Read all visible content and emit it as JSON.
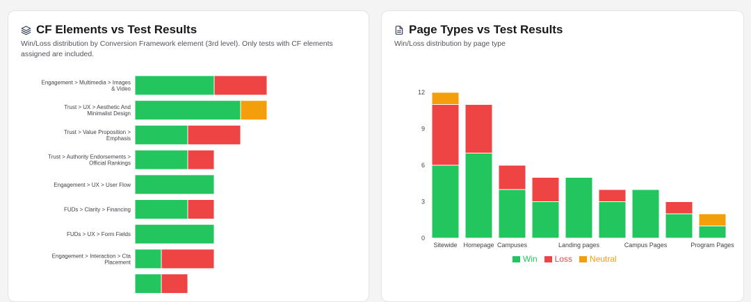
{
  "colors": {
    "win": "#22c55e",
    "loss": "#ef4444",
    "neutral": "#f59e0b"
  },
  "left_card": {
    "icon": "layers-icon",
    "title": "CF Elements vs Test Results",
    "subtitle": "Win/Loss distribution by Conversion Framework element (3rd level). Only tests with CF elements assigned are included."
  },
  "right_card": {
    "icon": "document-icon",
    "title": "Page Types vs Test Results",
    "subtitle": "Win/Loss distribution by page type"
  },
  "legend": {
    "win": "Win",
    "loss": "Loss",
    "neutral": "Neutral"
  },
  "chart_data": [
    {
      "type": "bar",
      "orientation": "horizontal",
      "stacked": true,
      "categories": [
        [
          "Engagement > Multimedia > Images",
          "& Video"
        ],
        [
          "Trust > UX > Aesthetic And",
          "Minimalist Design"
        ],
        [
          "Trust > Value Proposition >",
          "Emphasis"
        ],
        [
          "Trust > Authority Endorsements >",
          "Official Rankings"
        ],
        [
          "Engagement > UX > User Flow"
        ],
        [
          "FUDs > Clarity > Financing"
        ],
        [
          "FUDs > UX > Form Fields"
        ],
        [
          "Engagement > Interaction > Cta",
          "Placement"
        ],
        [
          ""
        ]
      ],
      "series": [
        {
          "name": "Win",
          "values": [
            3,
            4,
            2,
            2,
            3,
            2,
            3,
            1,
            1
          ]
        },
        {
          "name": "Loss",
          "values": [
            2,
            0,
            2,
            1,
            0,
            1,
            0,
            2,
            1
          ]
        },
        {
          "name": "Neutral",
          "values": [
            0,
            1,
            0,
            0,
            0,
            0,
            0,
            0,
            0
          ]
        }
      ]
    },
    {
      "type": "bar",
      "stacked": true,
      "categories": [
        "Sitewide",
        "Homepage",
        "Campuses",
        "Landing pages",
        "Landing pages",
        "Campus Pages",
        "Campus Pages",
        "Program Pages",
        "Program Pages"
      ],
      "x_tick_labels": [
        "Sitewide",
        "Homepage",
        "Campuses",
        "",
        "Landing pages",
        "",
        "Campus Pages",
        "",
        "Program Pages"
      ],
      "series": [
        {
          "name": "Win",
          "values": [
            6,
            7,
            4,
            3,
            5,
            3,
            4,
            2,
            1
          ]
        },
        {
          "name": "Loss",
          "values": [
            5,
            4,
            2,
            2,
            0,
            1,
            0,
            1,
            0
          ]
        },
        {
          "name": "Neutral",
          "values": [
            1,
            0,
            0,
            0,
            0,
            0,
            0,
            0,
            1
          ]
        }
      ],
      "y_ticks": [
        0,
        3,
        6,
        9,
        12
      ],
      "ylim": [
        0,
        12
      ],
      "legend_position": "bottom"
    }
  ]
}
